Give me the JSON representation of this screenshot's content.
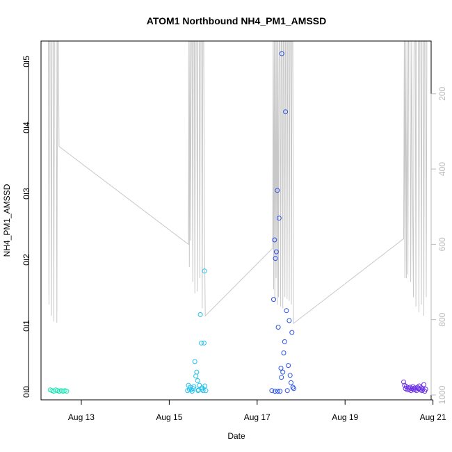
{
  "chart_data": {
    "type": "scatter",
    "title": "ATOM1 Northbound NH4_PM1_AMSSD",
    "xlabel": "Date",
    "ylabel": "NH4_PM1_AMSSD",
    "x_ticks": [
      "Aug 13",
      "Aug 15",
      "Aug 17",
      "Aug 19",
      "Aug 21"
    ],
    "y_ticks": [
      "0.0",
      "0.1",
      "0.2",
      "0.3",
      "0.4",
      "0.5"
    ],
    "y2_ticks": [
      "200",
      "400",
      "600",
      "800",
      "1000"
    ],
    "xlim": [
      "2004-08-12T02:00",
      "2004-08-20T23:00"
    ],
    "ylim": [
      -0.012,
      0.531
    ],
    "y2lim": [
      1013,
      60
    ],
    "y2_reversed": true,
    "grid": false,
    "right_axis_color": "#b9b9b9",
    "line_color": "#c8c8c8",
    "series": [
      {
        "color": "#19e6b4",
        "points": [
          [
            "2004-08-12T07:00",
            0.003
          ],
          [
            "2004-08-12T08:00",
            0.002
          ],
          [
            "2004-08-12T09:00",
            0.001
          ],
          [
            "2004-08-12T10:00",
            0.003
          ],
          [
            "2004-08-12T11:00",
            0.002
          ],
          [
            "2004-08-12T12:00",
            0.001
          ],
          [
            "2004-08-12T13:00",
            0.002
          ],
          [
            "2004-08-12T14:00",
            0.001
          ],
          [
            "2004-08-12T15:00",
            0.002
          ],
          [
            "2004-08-12T16:00",
            0.001
          ]
        ]
      },
      {
        "color": "#20c0ee",
        "points": [
          [
            "2004-08-15T10:00",
            0.002
          ],
          [
            "2004-08-15T10:30",
            0.01
          ],
          [
            "2004-08-15T11:00",
            0.004
          ],
          [
            "2004-08-15T11:30",
            0.007
          ],
          [
            "2004-08-15T12:00",
            0.003
          ],
          [
            "2004-08-15T12:30",
            0.001
          ],
          [
            "2004-08-15T13:00",
            0.005
          ],
          [
            "2004-08-15T13:30",
            0.008
          ],
          [
            "2004-08-15T14:00",
            0.046
          ],
          [
            "2004-08-15T14:30",
            0.024
          ],
          [
            "2004-08-15T15:00",
            0.03
          ],
          [
            "2004-08-15T15:30",
            0.017
          ],
          [
            "2004-08-15T16:00",
            0.003
          ],
          [
            "2004-08-15T16:30",
            0.01
          ],
          [
            "2004-08-15T17:00",
            0.117
          ],
          [
            "2004-08-15T17:30",
            0.074
          ],
          [
            "2004-08-15T18:00",
            0.006
          ],
          [
            "2004-08-15T18:30",
            0.002
          ],
          [
            "2004-08-15T19:00",
            0.074
          ],
          [
            "2004-08-15T19:15",
            0.183
          ],
          [
            "2004-08-15T19:30",
            0.009
          ],
          [
            "2004-08-15T20:00",
            0.002
          ],
          [
            "2004-08-15T17:45",
            0.004
          ],
          [
            "2004-08-15T15:45",
            0.002
          ]
        ]
      },
      {
        "color": "#2a52e8",
        "points": [
          [
            "2004-08-17T08:00",
            0.002
          ],
          [
            "2004-08-17T09:00",
            0.14
          ],
          [
            "2004-08-17T09:30",
            0.23
          ],
          [
            "2004-08-17T10:00",
            0.202
          ],
          [
            "2004-08-17T10:30",
            0.212
          ],
          [
            "2004-08-17T11:00",
            0.305
          ],
          [
            "2004-08-17T11:30",
            0.098
          ],
          [
            "2004-08-17T12:00",
            0.263
          ],
          [
            "2004-08-17T12:30",
            0.001
          ],
          [
            "2004-08-17T13:00",
            0.036
          ],
          [
            "2004-08-17T13:15",
            0.022
          ],
          [
            "2004-08-17T13:30",
            0.512
          ],
          [
            "2004-08-17T14:00",
            0.03
          ],
          [
            "2004-08-17T14:30",
            0.059
          ],
          [
            "2004-08-17T15:00",
            0.076
          ],
          [
            "2004-08-17T15:30",
            0.424
          ],
          [
            "2004-08-17T16:00",
            0.123
          ],
          [
            "2004-08-17T16:30",
            0.002
          ],
          [
            "2004-08-17T17:00",
            0.04
          ],
          [
            "2004-08-17T17:30",
            0.108
          ],
          [
            "2004-08-17T18:00",
            0.025
          ],
          [
            "2004-08-17T18:30",
            0.014
          ],
          [
            "2004-08-17T19:00",
            0.09
          ],
          [
            "2004-08-17T19:30",
            0.007
          ],
          [
            "2004-08-17T20:00",
            0.005
          ],
          [
            "2004-08-17T11:15",
            0.001
          ],
          [
            "2004-08-17T09:45",
            0.001
          ]
        ]
      },
      {
        "color": "#6a2ee6",
        "points": [
          [
            "2004-08-20T08:00",
            0.015
          ],
          [
            "2004-08-20T08:30",
            0.01
          ],
          [
            "2004-08-20T09:00",
            0.005
          ],
          [
            "2004-08-20T09:30",
            0.008
          ],
          [
            "2004-08-20T10:00",
            0.003
          ],
          [
            "2004-08-20T10:30",
            0.006
          ],
          [
            "2004-08-20T11:00",
            0.004
          ],
          [
            "2004-08-20T11:30",
            0.007
          ],
          [
            "2004-08-20T12:00",
            0.002
          ],
          [
            "2004-08-20T12:30",
            0.005
          ],
          [
            "2004-08-20T13:00",
            0.008
          ],
          [
            "2004-08-20T13:30",
            0.003
          ],
          [
            "2004-08-20T14:00",
            0.006
          ],
          [
            "2004-08-20T14:30",
            0.004
          ],
          [
            "2004-08-20T15:00",
            0.002
          ],
          [
            "2004-08-20T15:30",
            0.007
          ],
          [
            "2004-08-20T16:00",
            0.005
          ],
          [
            "2004-08-20T16:30",
            0.009
          ],
          [
            "2004-08-20T17:00",
            0.003
          ],
          [
            "2004-08-20T17:30",
            0.006
          ],
          [
            "2004-08-20T18:00",
            0.002
          ],
          [
            "2004-08-20T18:30",
            0.004
          ],
          [
            "2004-08-20T19:00",
            0.011
          ],
          [
            "2004-08-20T19:30",
            0.001
          ],
          [
            "2004-08-20T20:00",
            0.004
          ]
        ]
      }
    ],
    "pressure_line": [
      [
        "2004-08-12T06:00",
        60
      ],
      [
        "2004-08-12T06:20",
        760
      ],
      [
        "2004-08-12T06:40",
        60
      ],
      [
        "2004-08-12T07:20",
        60
      ],
      [
        "2004-08-12T07:40",
        790
      ],
      [
        "2004-08-12T08:00",
        60
      ],
      [
        "2004-08-12T08:40",
        60
      ],
      [
        "2004-08-12T09:00",
        805
      ],
      [
        "2004-08-12T09:20",
        60
      ],
      [
        "2004-08-12T10:20",
        60
      ],
      [
        "2004-08-12T10:40",
        808
      ],
      [
        "2004-08-12T11:00",
        60
      ],
      [
        "2004-08-12T11:30",
        60
      ],
      [
        "2004-08-12T11:50",
        340
      ],
      [
        "2004-08-15T10:30",
        600
      ],
      [
        "2004-08-15T10:45",
        60
      ],
      [
        "2004-08-15T11:00",
        660
      ],
      [
        "2004-08-15T11:20",
        60
      ],
      [
        "2004-08-15T11:40",
        590
      ],
      [
        "2004-08-15T12:00",
        60
      ],
      [
        "2004-08-15T12:30",
        60
      ],
      [
        "2004-08-15T12:50",
        700
      ],
      [
        "2004-08-15T13:10",
        60
      ],
      [
        "2004-08-15T13:40",
        60
      ],
      [
        "2004-08-15T14:00",
        730
      ],
      [
        "2004-08-15T14:20",
        60
      ],
      [
        "2004-08-15T15:00",
        60
      ],
      [
        "2004-08-15T15:20",
        725
      ],
      [
        "2004-08-15T15:40",
        60
      ],
      [
        "2004-08-15T16:20",
        60
      ],
      [
        "2004-08-15T16:40",
        690
      ],
      [
        "2004-08-15T17:00",
        60
      ],
      [
        "2004-08-15T17:40",
        60
      ],
      [
        "2004-08-15T18:00",
        770
      ],
      [
        "2004-08-15T18:20",
        60
      ],
      [
        "2004-08-15T18:50",
        60
      ],
      [
        "2004-08-15T19:10",
        535
      ],
      [
        "2004-08-15T19:40",
        790
      ],
      [
        "2004-08-17T08:30",
        610
      ],
      [
        "2004-08-17T08:45",
        60
      ],
      [
        "2004-08-17T09:00",
        720
      ],
      [
        "2004-08-17T09:20",
        60
      ],
      [
        "2004-08-17T09:40",
        745
      ],
      [
        "2004-08-17T10:00",
        60
      ],
      [
        "2004-08-17T10:20",
        690
      ],
      [
        "2004-08-17T10:40",
        60
      ],
      [
        "2004-08-17T11:00",
        760
      ],
      [
        "2004-08-17T11:20",
        60
      ],
      [
        "2004-08-17T11:40",
        740
      ],
      [
        "2004-08-17T12:00",
        60
      ],
      [
        "2004-08-17T12:30",
        60
      ],
      [
        "2004-08-17T12:50",
        765
      ],
      [
        "2004-08-17T13:10",
        60
      ],
      [
        "2004-08-17T13:40",
        60
      ],
      [
        "2004-08-17T14:00",
        770
      ],
      [
        "2004-08-17T14:20",
        60
      ],
      [
        "2004-08-17T14:50",
        60
      ],
      [
        "2004-08-17T15:10",
        740
      ],
      [
        "2004-08-17T15:30",
        60
      ],
      [
        "2004-08-17T16:00",
        60
      ],
      [
        "2004-08-17T16:20",
        745
      ],
      [
        "2004-08-17T16:40",
        60
      ],
      [
        "2004-08-17T17:10",
        60
      ],
      [
        "2004-08-17T17:30",
        750
      ],
      [
        "2004-08-17T17:50",
        60
      ],
      [
        "2004-08-17T18:20",
        60
      ],
      [
        "2004-08-17T18:40",
        760
      ],
      [
        "2004-08-17T19:00",
        60
      ],
      [
        "2004-08-17T19:30",
        60
      ],
      [
        "2004-08-17T19:50",
        810
      ],
      [
        "2004-08-20T08:00",
        585
      ],
      [
        "2004-08-20T08:20",
        60
      ],
      [
        "2004-08-20T08:40",
        690
      ],
      [
        "2004-08-20T09:00",
        60
      ],
      [
        "2004-08-20T09:30",
        690
      ],
      [
        "2004-08-20T09:50",
        60
      ],
      [
        "2004-08-20T10:20",
        680
      ],
      [
        "2004-08-20T10:40",
        60
      ],
      [
        "2004-08-20T11:30",
        60
      ],
      [
        "2004-08-20T11:50",
        700
      ],
      [
        "2004-08-20T12:20",
        60
      ],
      [
        "2004-08-20T13:00",
        560
      ],
      [
        "2004-08-20T13:20",
        740
      ],
      [
        "2004-08-20T13:40",
        60
      ],
      [
        "2004-08-20T14:20",
        60
      ],
      [
        "2004-08-20T14:40",
        765
      ],
      [
        "2004-08-20T15:00",
        60
      ],
      [
        "2004-08-20T16:00",
        60
      ],
      [
        "2004-08-20T16:20",
        780
      ],
      [
        "2004-08-20T16:40",
        60
      ],
      [
        "2004-08-20T17:20",
        60
      ],
      [
        "2004-08-20T17:40",
        760
      ],
      [
        "2004-08-20T18:00",
        60
      ],
      [
        "2004-08-20T18:40",
        60
      ],
      [
        "2004-08-20T19:00",
        790
      ],
      [
        "2004-08-20T19:20",
        60
      ],
      [
        "2004-08-20T20:00",
        60
      ],
      [
        "2004-08-20T20:20",
        740
      ],
      [
        "2004-08-20T20:40",
        60
      ]
    ]
  }
}
